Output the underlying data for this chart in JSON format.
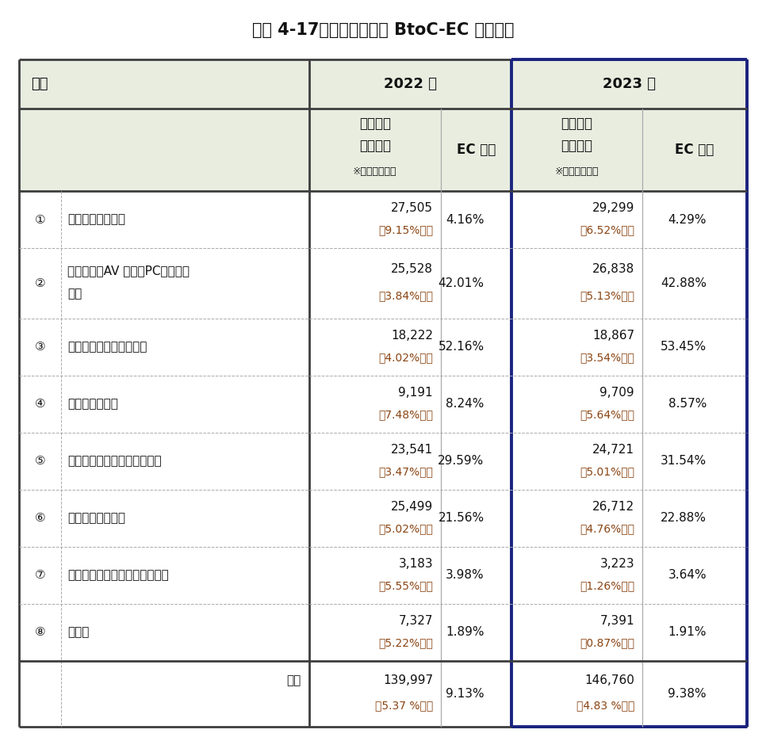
{
  "title": "図表 4-17：物販系分野の BtoC-EC 市場規模",
  "rows": [
    {
      "num": "①",
      "name": "食品、飲料、酒類",
      "name2": "",
      "v2022": "27,505",
      "yoy2022": "（9.15%増）",
      "ec2022": "4.16%",
      "v2023": "29,299",
      "yoy2023": "（6.52%増）",
      "ec2023": "4.29%"
    },
    {
      "num": "②",
      "name": "生活家電、AV 機器、PC・周辺機",
      "name2": "器等",
      "v2022": "25,528",
      "yoy2022": "（3.84%増）",
      "ec2022": "42.01%",
      "v2023": "26,838",
      "yoy2023": "（5.13%増）",
      "ec2023": "42.88%"
    },
    {
      "num": "③",
      "name": "書籍、映像・音楽ソフト",
      "name2": "",
      "v2022": "18,222",
      "yoy2022": "（4.02%増）",
      "ec2022": "52.16%",
      "v2023": "18,867",
      "yoy2023": "（3.54%増）",
      "ec2023": "53.45%"
    },
    {
      "num": "④",
      "name": "化粧品、医薬品",
      "name2": "",
      "v2022": "9,191",
      "yoy2022": "（7.48%増）",
      "ec2022": "8.24%",
      "v2023": "9,709",
      "yoy2023": "（5.64%増）",
      "ec2023": "8.57%"
    },
    {
      "num": "⑤",
      "name": "生活雑貨、家具、インテリア",
      "name2": "",
      "v2022": "23,541",
      "yoy2022": "（3.47%増）",
      "ec2022": "29.59%",
      "v2023": "24,721",
      "yoy2023": "（5.01%増）",
      "ec2023": "31.54%"
    },
    {
      "num": "⑥",
      "name": "衣類・服装雑貨等",
      "name2": "",
      "v2022": "25,499",
      "yoy2022": "（5.02%増）",
      "ec2022": "21.56%",
      "v2023": "26,712",
      "yoy2023": "（4.76%増）",
      "ec2023": "22.88%"
    },
    {
      "num": "⑦",
      "name": "自動車、自動二輪車、パーツ等",
      "name2": "",
      "v2022": "3,183",
      "yoy2022": "（5.55%増）",
      "ec2022": "3.98%",
      "v2023": "3,223",
      "yoy2023": "（1.26%増）",
      "ec2023": "3.64%"
    },
    {
      "num": "⑧",
      "name": "その他",
      "name2": "",
      "v2022": "7,327",
      "yoy2022": "（5.22%増）",
      "ec2022": "1.89%",
      "v2023": "7,391",
      "yoy2023": "（0.87%増）",
      "ec2023": "1.91%"
    }
  ],
  "total": {
    "label": "合計",
    "v2022": "139,997",
    "yoy2022": "（5.37 %増）",
    "ec2022": "9.13%",
    "v2023": "146,760",
    "yoy2023": "（4.83 %増）",
    "ec2023": "9.38%"
  },
  "outer_border_color": "#3d3d3d",
  "inner_border_color": "#aaaaaa",
  "thick_border_color": "#1a237e",
  "text_color_main": "#111111",
  "text_color_yoy": "#8b4513",
  "bg_white": "#ffffff",
  "bg_header": "#e8ede0",
  "title_fontsize": 15,
  "cell_fontsize": 11,
  "header_fontsize": 12,
  "small_fontsize": 9
}
